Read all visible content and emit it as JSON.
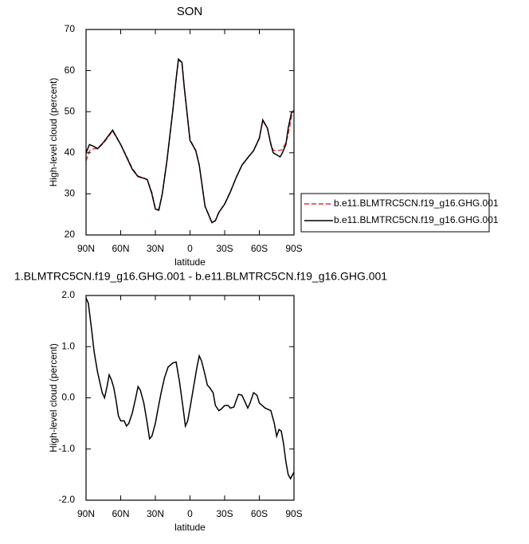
{
  "chart_data": [
    {
      "type": "line",
      "title": "SON",
      "x_label": "latitude",
      "y_label": "High-level cloud (percent)",
      "x": [
        90,
        87,
        83,
        80,
        75,
        67,
        60,
        55,
        50,
        45,
        40,
        37,
        33,
        30,
        27,
        24,
        20,
        15,
        12,
        10,
        7,
        5,
        0,
        -5,
        -8,
        -10,
        -13,
        -19,
        -22,
        -25,
        -30,
        -35,
        -40,
        -45,
        -50,
        -55,
        -60,
        -63,
        -67,
        -70,
        -72,
        -75,
        -78,
        -80,
        -83,
        -85,
        -88,
        -90
      ],
      "series": [
        {
          "name": "b.e11.BLMTRC5CN.f19_g16.GHG.001",
          "color": "#e8322e",
          "line_style": "dashed",
          "values": [
            38,
            40.5,
            41,
            41,
            42.3,
            45.3,
            42,
            39.2,
            36.2,
            34.3,
            33.9,
            33.4,
            30.3,
            26.5,
            26.2,
            30,
            38,
            50,
            58,
            62.6,
            61.8,
            56,
            43.2,
            40.6,
            37,
            33,
            27,
            23,
            23.5,
            25.5,
            27.6,
            30.6,
            34,
            37,
            38.8,
            40.5,
            43.6,
            47.8,
            46,
            42.2,
            40.6,
            40.5,
            40.6,
            40.8,
            42.5,
            44.5,
            49,
            50.5
          ]
        },
        {
          "name": "b.e11.BLMTRC5CN.f19_g16.GHG.001",
          "color": "#000000",
          "line_style": "solid",
          "values": [
            40,
            42,
            41.5,
            41,
            42.5,
            45.5,
            42,
            39,
            36,
            34.2,
            33.8,
            33.5,
            30,
            26.3,
            26,
            30,
            38,
            50,
            58,
            62.8,
            62,
            56,
            43,
            40.5,
            37,
            33,
            27,
            23,
            23.5,
            25.5,
            27.5,
            30.5,
            34,
            37,
            38.8,
            40.5,
            43.5,
            48,
            46,
            42,
            40,
            39.5,
            39,
            40,
            42,
            46,
            50,
            50
          ]
        }
      ],
      "xlim": [
        90,
        -90
      ],
      "xticks": [
        {
          "value": 90,
          "label": "90N"
        },
        {
          "value": 60,
          "label": "60N"
        },
        {
          "value": 30,
          "label": "30N"
        },
        0,
        {
          "value": -30,
          "label": "30S"
        },
        {
          "value": -60,
          "label": "60S"
        },
        {
          "value": -90,
          "label": "90S"
        }
      ],
      "ylim": [
        20,
        70
      ],
      "yticks": [
        20,
        30,
        40,
        50,
        60,
        70
      ],
      "legend": "right"
    },
    {
      "type": "line",
      "title": "1.BLMTRC5CN.f19_g16.GHG.001 - b.e11.BLMTRC5CN.f19_g16.GHG.001",
      "x_label": "latitude",
      "y_label": "High-level cloud (percent)",
      "x": [
        90,
        88,
        85,
        83,
        80,
        78,
        76,
        74,
        72,
        70,
        68,
        66,
        64,
        62,
        60,
        57,
        55,
        53,
        50,
        47,
        45,
        43,
        40,
        37,
        35,
        33,
        30,
        28,
        25,
        22,
        19,
        15,
        12,
        9,
        6,
        4,
        2,
        0,
        -3,
        -6,
        -8,
        -10,
        -13,
        -15,
        -17,
        -20,
        -22,
        -25,
        -27,
        -30,
        -33,
        -35,
        -38,
        -40,
        -42,
        -45,
        -47,
        -50,
        -52,
        -55,
        -58,
        -60,
        -65,
        -70,
        -73,
        -75,
        -77,
        -79,
        -81,
        -83,
        -85,
        -87,
        -90
      ],
      "series": [
        {
          "color": "#000000",
          "line_style": "solid",
          "values": [
            1.95,
            1.85,
            1.3,
            0.9,
            0.5,
            0.3,
            0.1,
            0.0,
            0.2,
            0.45,
            0.35,
            0.2,
            -0.05,
            -0.35,
            -0.45,
            -0.45,
            -0.55,
            -0.5,
            -0.3,
            0.0,
            0.22,
            0.15,
            -0.1,
            -0.5,
            -0.8,
            -0.75,
            -0.5,
            -0.25,
            0.1,
            0.4,
            0.6,
            0.68,
            0.7,
            0.3,
            -0.2,
            -0.55,
            -0.45,
            -0.2,
            0.2,
            0.6,
            0.82,
            0.72,
            0.45,
            0.25,
            0.2,
            0.1,
            -0.15,
            -0.25,
            -0.22,
            -0.15,
            -0.15,
            -0.2,
            -0.18,
            -0.05,
            0.07,
            0.05,
            -0.05,
            -0.2,
            -0.1,
            0.1,
            0.05,
            -0.1,
            -0.2,
            -0.25,
            -0.5,
            -0.75,
            -0.62,
            -0.65,
            -0.9,
            -1.25,
            -1.5,
            -1.58,
            -1.45
          ]
        }
      ],
      "xlim": [
        90,
        -90
      ],
      "xticks": [
        {
          "value": 90,
          "label": "90N"
        },
        {
          "value": 60,
          "label": "60N"
        },
        {
          "value": 30,
          "label": "30N"
        },
        0,
        {
          "value": -30,
          "label": "30S"
        },
        {
          "value": -60,
          "label": "60S"
        },
        {
          "value": -90,
          "label": "90S"
        }
      ],
      "ylim": [
        -2,
        2
      ],
      "yticks": [
        {
          "value": -2,
          "label": "-2.0"
        },
        {
          "value": -1,
          "label": "-1.0"
        },
        {
          "value": 0,
          "label": "0.0"
        },
        {
          "value": 1,
          "label": "1.0"
        },
        {
          "value": 2,
          "label": "2.0"
        }
      ]
    }
  ]
}
